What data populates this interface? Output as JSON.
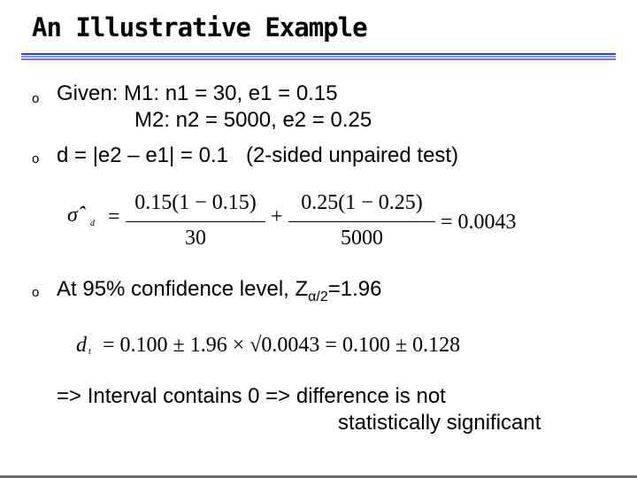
{
  "slide": {
    "title": "An Illustrative Example",
    "rule_colors": [
      "#3d3df0",
      "#4fb3e8",
      "#b45ad8"
    ],
    "bullet_glyph": "o",
    "given_line1": "Given: M1: n1 = 30, e1 = 0.15",
    "given_line2": "M2: n2 = 5000, e2 = 0.25",
    "d_line": "d = |e2 – e1| = 0.1   (2-sided unpaired test)",
    "conf_prefix": "At 95% confidence level, Z",
    "conf_sub": "α/2",
    "conf_suffix": "=1.96",
    "conclusion_line1": "=> Interval contains 0 => difference is not",
    "conclusion_line2": "statistically significant"
  },
  "formula1": {
    "lhs": "σ̂",
    "lhs_sub": "d",
    "num1": "0.15(1 − 0.15)",
    "den1": "30",
    "plus": "+",
    "num2": "0.25(1 − 0.25)",
    "den2": "5000",
    "result": "= 0.0043"
  },
  "formula2": {
    "lhs": "d",
    "lhs_sub": "t",
    "expr": "= 0.100 ± 1.96 × √0.0043 = 0.100 ± 0.128"
  }
}
